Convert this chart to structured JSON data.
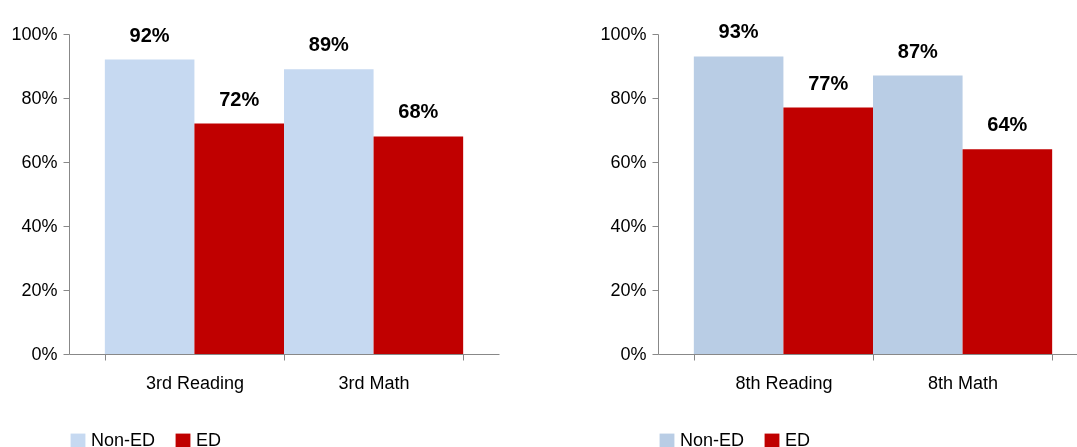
{
  "chart_data": [
    {
      "type": "bar",
      "categories": [
        "3rd Reading",
        "3rd Math"
      ],
      "series": [
        {
          "name": "Non-ED",
          "color": "#c6d9f1",
          "values": [
            92,
            89
          ],
          "value_labels": [
            "92%",
            "89%"
          ]
        },
        {
          "name": "ED",
          "color": "#c00000",
          "values": [
            72,
            68
          ],
          "value_labels": [
            "72%",
            "68%"
          ]
        }
      ],
      "ylim": [
        0,
        100
      ],
      "yticks": [
        {
          "value": 0,
          "label": "0%"
        },
        {
          "value": 20,
          "label": "20%"
        },
        {
          "value": 40,
          "label": "40%"
        },
        {
          "value": 60,
          "label": "60%"
        },
        {
          "value": 80,
          "label": "80%"
        },
        {
          "value": 100,
          "label": "100%"
        }
      ],
      "grid": false,
      "legend": "bottom"
    },
    {
      "type": "bar",
      "categories": [
        "8th Reading",
        "8th Math"
      ],
      "series": [
        {
          "name": "Non-ED",
          "color": "#b9cde5",
          "values": [
            93,
            87
          ],
          "value_labels": [
            "93%",
            "87%"
          ]
        },
        {
          "name": "ED",
          "color": "#c00000",
          "values": [
            77,
            64
          ],
          "value_labels": [
            "77%",
            "64%"
          ]
        }
      ],
      "ylim": [
        0,
        100
      ],
      "yticks": [
        {
          "value": 0,
          "label": "0%"
        },
        {
          "value": 20,
          "label": "20%"
        },
        {
          "value": 40,
          "label": "40%"
        },
        {
          "value": 60,
          "label": "60%"
        },
        {
          "value": 80,
          "label": "80%"
        },
        {
          "value": 100,
          "label": "100%"
        }
      ],
      "grid": false,
      "legend": "bottom"
    }
  ]
}
